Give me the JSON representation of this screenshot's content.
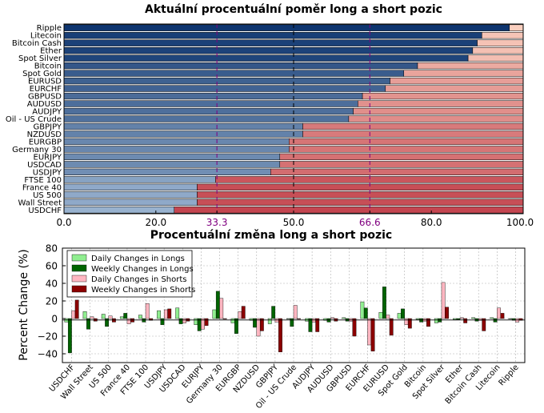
{
  "chart_data": [
    {
      "type": "bar",
      "orientation": "horizontal",
      "stacked": true,
      "title": "Aktuální procentuální poměr long a short pozic",
      "categories": [
        "Ripple",
        "Litecoin",
        "Bitcoin Cash",
        "Ether",
        "Spot Silver",
        "Bitcoin",
        "Spot Gold",
        "EURUSD",
        "EURCHF",
        "GBPUSD",
        "AUDUSD",
        "AUDJPY",
        "Oil - US Crude",
        "GBPJPY",
        "NZDUSD",
        "EURGBP",
        "Germany 30",
        "EURJPY",
        "USDCAD",
        "USDJPY",
        "FTSE 100",
        "France 40",
        "US 500",
        "Wall Street",
        "USDCHF"
      ],
      "series": [
        {
          "values": [
            97,
            91,
            90,
            89,
            88,
            77,
            74,
            71,
            70,
            65,
            64,
            63,
            62,
            52,
            52,
            49,
            49,
            47,
            47,
            45,
            33,
            29,
            29,
            29,
            24
          ]
        },
        {
          "values": [
            3,
            9,
            10,
            11,
            12,
            23,
            26,
            29,
            30,
            35,
            36,
            37,
            38,
            48,
            48,
            51,
            51,
            53,
            53,
            55,
            67,
            71,
            71,
            71,
            76
          ]
        }
      ],
      "xlim": [
        0,
        100
      ],
      "xticks": [
        "0.0",
        "20.0",
        "33.3",
        "50.0",
        "66.6",
        "80.0",
        "100.0"
      ],
      "reference_lines": [
        33.3,
        50.0,
        66.6
      ],
      "colors": {
        "long_light": "#c6dbef",
        "long_dark": "#08306b",
        "short_light": "#fcd5c4",
        "short_dark": "#b2182b",
        "reference": "#800080"
      }
    },
    {
      "type": "bar",
      "title": "Procentuální změna long a short pozic",
      "ylabel": "Percent Change (%)",
      "ylim": [
        -50,
        80
      ],
      "yticks": [
        "80",
        "60",
        "40",
        "20",
        "0",
        "−20",
        "−40"
      ],
      "grid": true,
      "legend_position": "top-left",
      "categories": [
        "USDCHF",
        "Wall Street",
        "US 500",
        "France 40",
        "FTSE 100",
        "USDJPY",
        "USDCAD",
        "EURJPY",
        "Germany 30",
        "EURGBP",
        "NZDUSD",
        "GBPJPY",
        "Oil - US Crude",
        "AUDJPY",
        "AUDUSD",
        "GBPUSD",
        "EURCHF",
        "EURUSD",
        "Spot Gold",
        "Bitcoin",
        "Spot Silver",
        "Ether",
        "Bitcoin Cash",
        "Litecoin",
        "Ripple"
      ],
      "series": [
        {
          "name": "Daily Changes in Longs",
          "color": "#90ee90",
          "values": [
            -4,
            8,
            5,
            2,
            4,
            9,
            12,
            -7,
            10,
            -5,
            -2,
            -6,
            0,
            -3,
            -2,
            1,
            19,
            7,
            6,
            -1,
            -5,
            -1,
            1,
            1,
            0
          ]
        },
        {
          "name": "Weekly Changes in Longs",
          "color": "#006400",
          "values": [
            -39,
            -12,
            -9,
            6,
            -4,
            -7,
            -6,
            -14,
            31,
            -17,
            -10,
            14,
            -9,
            -15,
            -4,
            -3,
            12,
            36,
            11,
            -4,
            -4,
            -1,
            -3,
            -4,
            -2
          ]
        },
        {
          "name": "Daily Changes in Shorts",
          "color": "#ffb6c1",
          "values": [
            9,
            2,
            3,
            -6,
            17,
            10,
            -5,
            -12,
            23,
            8,
            -20,
            -4,
            15,
            -4,
            1,
            -3,
            -30,
            4,
            -7,
            -3,
            41,
            1,
            -2,
            12,
            -4
          ]
        },
        {
          "name": "Weekly Changes in Shorts",
          "color": "#8b0000",
          "values": [
            21,
            -3,
            -4,
            -4,
            -2,
            11,
            -3,
            -8,
            0,
            14,
            -14,
            -38,
            0,
            -15,
            -3,
            -20,
            -37,
            -19,
            -11,
            -9,
            13,
            -5,
            -14,
            6,
            -2
          ]
        }
      ]
    }
  ]
}
